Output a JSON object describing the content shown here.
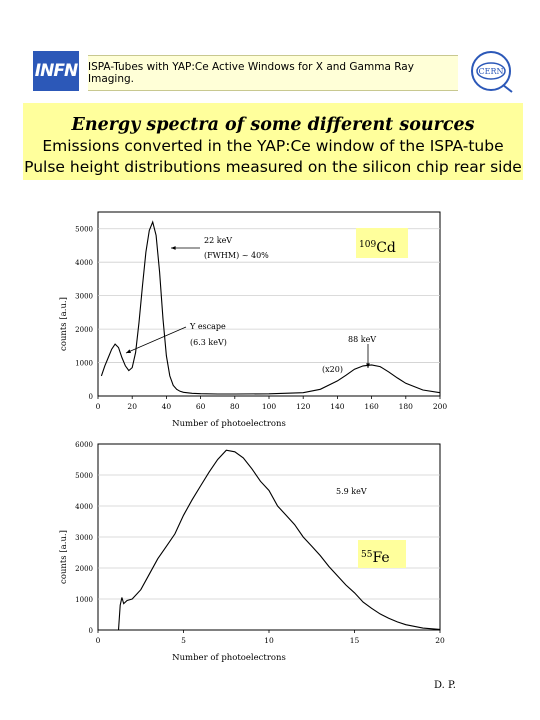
{
  "header": {
    "logo_left": "INFN",
    "logo_right": "CERN",
    "banner": "ISPA-Tubes with YAP:Ce Active Windows for X and Gamma Ray Imaging."
  },
  "slide": {
    "title": "Energy spectra of some different sources",
    "subtitle1": "Emissions converted in the YAP:Ce window of the ISPA-tube",
    "subtitle2": "Pulse height distributions measured on the silicon chip rear side"
  },
  "chart_data": [
    {
      "type": "line",
      "source_label_sup": "109",
      "source_label": "Cd",
      "xlabel": "Number of photoelectrons",
      "ylabel": "counts [a.u.]",
      "xlim": [
        0,
        200
      ],
      "ylim": [
        0,
        5500
      ],
      "xticks": [
        "0",
        "20",
        "40",
        "60",
        "80",
        "100",
        "120",
        "140",
        "160",
        "180",
        "200"
      ],
      "yticks": [
        "0",
        "1000",
        "2000",
        "3000",
        "4000",
        "5000"
      ],
      "annotations": [
        "22 keV",
        "(FWHM) ~ 40%",
        "Y escape",
        "(6.3 keV)",
        "88 keV",
        "(x20)"
      ],
      "series": [
        {
          "x": [
            2,
            4,
            6,
            8,
            10,
            12,
            14,
            16,
            18,
            20,
            22,
            24,
            26,
            28,
            30,
            32,
            34,
            36,
            38,
            40,
            42,
            44,
            46,
            48,
            50,
            55,
            60,
            70,
            80,
            100,
            120,
            130,
            140,
            145,
            150,
            155,
            160,
            165,
            170,
            175,
            180,
            190,
            200
          ],
          "y": [
            600,
            900,
            1150,
            1400,
            1550,
            1450,
            1150,
            900,
            760,
            850,
            1300,
            2200,
            3300,
            4300,
            4950,
            5200,
            4800,
            3700,
            2300,
            1200,
            600,
            320,
            200,
            140,
            110,
            80,
            70,
            60,
            60,
            65,
            100,
            200,
            450,
            620,
            800,
            900,
            930,
            880,
            720,
            540,
            380,
            180,
            100
          ]
        }
      ]
    },
    {
      "type": "line",
      "source_label_sup": "55",
      "source_label": "Fe",
      "xlabel": "Number of photoelectrons",
      "ylabel": "counts [a.u.]",
      "xlim": [
        0,
        20
      ],
      "ylim": [
        0,
        6000
      ],
      "xticks": [
        "0",
        "5",
        "10",
        "15",
        "20"
      ],
      "yticks": [
        "0",
        "1000",
        "2000",
        "3000",
        "4000",
        "5000",
        "6000"
      ],
      "annotations": [
        "5.9 keV"
      ],
      "series": [
        {
          "x": [
            1.2,
            1.3,
            1.4,
            1.5,
            1.7,
            2,
            2.5,
            3,
            3.5,
            4,
            4.5,
            5,
            5.5,
            6,
            6.5,
            7,
            7.5,
            8,
            8.5,
            9,
            9.5,
            10,
            10.5,
            11,
            11.5,
            12,
            12.5,
            13,
            13.5,
            14,
            14.5,
            15,
            15.5,
            16,
            16.5,
            17,
            17.5,
            18,
            19,
            20
          ],
          "y": [
            0,
            800,
            1050,
            850,
            950,
            1000,
            1300,
            1800,
            2300,
            2700,
            3100,
            3700,
            4200,
            4650,
            5100,
            5500,
            5800,
            5750,
            5550,
            5200,
            4800,
            4500,
            4000,
            3700,
            3400,
            3000,
            2700,
            2400,
            2050,
            1750,
            1450,
            1200,
            900,
            700,
            520,
            380,
            260,
            170,
            60,
            20
          ]
        }
      ]
    }
  ],
  "footer": {
    "initials": "D. P."
  }
}
